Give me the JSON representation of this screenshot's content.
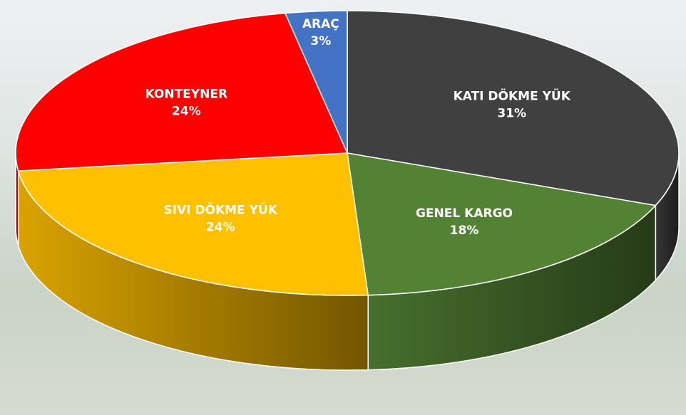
{
  "chart_data": {
    "type": "pie3d",
    "categories": [
      "KATI DÖKME YÜK",
      "GENEL KARGO",
      "SIVI DÖKME YÜK",
      "KONTEYNER",
      "ARAÇ"
    ],
    "values": [
      31,
      18,
      24,
      24,
      3
    ],
    "value_labels": [
      "31%",
      "18%",
      "24%",
      "24%",
      "3%"
    ],
    "colors": [
      "#404040",
      "#548235",
      "#ffc000",
      "#ff0000",
      "#4472c4"
    ]
  }
}
